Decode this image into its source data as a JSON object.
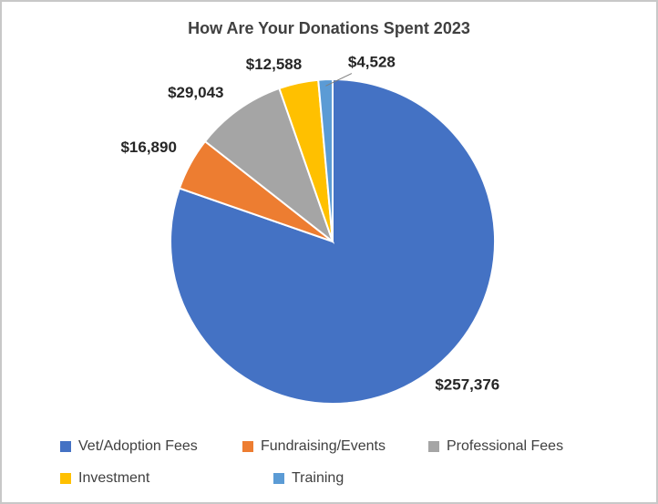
{
  "chart_data": {
    "type": "pie",
    "title": "How Are Your Donations Spent 2023",
    "categories": [
      "Vet/Adoption Fees",
      "Fundraising/Events",
      "Professional Fees",
      "Investment",
      "Training"
    ],
    "values": [
      257376,
      16890,
      29043,
      12588,
      4528
    ],
    "data_labels": [
      "$257,376",
      "$16,890",
      "$29,043",
      "$12,588",
      "$4,528"
    ],
    "colors": [
      "#4472C4",
      "#ED7D31",
      "#A5A5A5",
      "#FFC000",
      "#5B9BD5"
    ],
    "legend_position": "bottom",
    "start_angle_deg": 0,
    "direction": "clockwise"
  }
}
